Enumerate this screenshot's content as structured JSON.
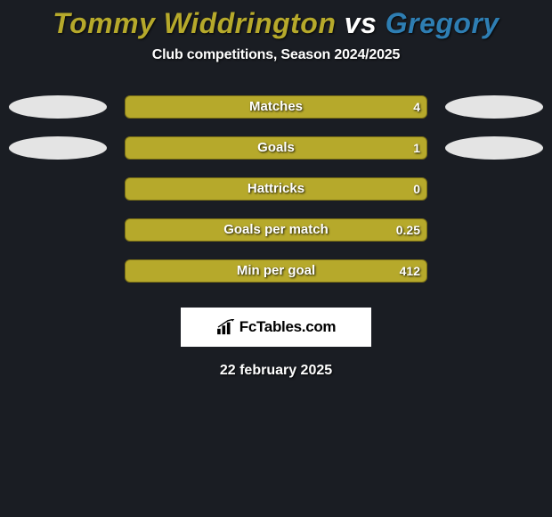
{
  "background_color": "#1a1d23",
  "title": {
    "player1": "Tommy Widdrington",
    "vs": "vs",
    "player2": "Gregory",
    "player1_color": "#b6a92b",
    "vs_color": "#ffffff",
    "player2_color": "#2e7eb3",
    "fontsize": 32
  },
  "subtitle": "Club competitions, Season 2024/2025",
  "colors": {
    "player1_bar": "#b6a92b",
    "player2_bar": "#2e7eb3",
    "blob_left": "#e4e4e4",
    "blob_right": "#e4e4e4",
    "text": "#ffffff"
  },
  "stats": [
    {
      "label": "Matches",
      "value_left": "",
      "value_right": "4",
      "fill": "p1",
      "show_blobs": true
    },
    {
      "label": "Goals",
      "value_left": "",
      "value_right": "1",
      "fill": "p1",
      "show_blobs": true
    },
    {
      "label": "Hattricks",
      "value_left": "",
      "value_right": "0",
      "fill": "none",
      "show_blobs": false
    },
    {
      "label": "Goals per match",
      "value_left": "",
      "value_right": "0.25",
      "fill": "none",
      "show_blobs": false
    },
    {
      "label": "Min per goal",
      "value_left": "",
      "value_right": "412",
      "fill": "none",
      "show_blobs": false
    }
  ],
  "bar_track_color": "#b6a92b",
  "bar_track_border": "#7a6f17",
  "brand": "FcTables.com",
  "date": "22 february 2025"
}
